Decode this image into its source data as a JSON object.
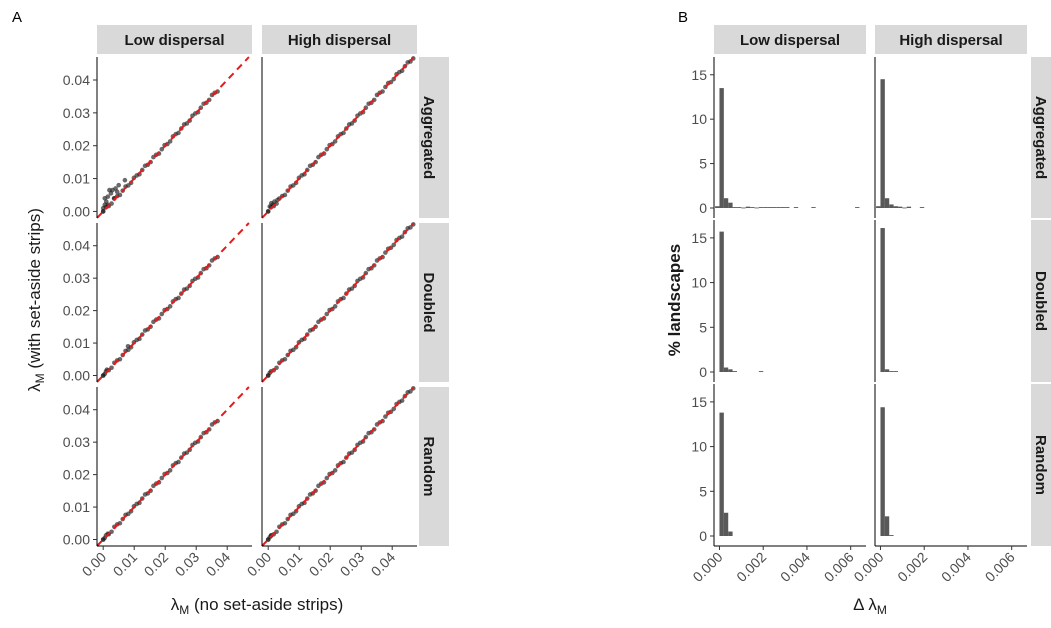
{
  "panel_labels": {
    "a": "A",
    "b": "B"
  },
  "chart_data": [
    {
      "type": "scatter",
      "panel": "A",
      "xlabel": "λM (no set-aside strips)",
      "ylabel": "λM (with set-aside strips)",
      "col_strips": [
        "Low dispersal",
        "High dispersal"
      ],
      "row_strips": [
        "Aggregated",
        "Doubled",
        "Random"
      ],
      "xlim": [
        -0.002,
        0.048
      ],
      "ylim": [
        -0.002,
        0.047
      ],
      "x_ticks": [
        "0.00",
        "0.01",
        "0.02",
        "0.03",
        "0.04"
      ],
      "y_ticks": [
        "0.00",
        "0.01",
        "0.02",
        "0.03",
        "0.04"
      ],
      "reference_line": {
        "type": "y = x",
        "style": "dashed",
        "color": "#e41a1c"
      },
      "point_color": "#1a1a1a",
      "panels": [
        {
          "row": "Aggregated",
          "col": "Low dispersal",
          "x_max": 0.037,
          "cluster": [
            [
              0.0,
              0.0
            ],
            [
              0.0005,
              0.004
            ],
            [
              0.001,
              0.003
            ],
            [
              0.0015,
              0.002
            ],
            [
              0.002,
              0.0065
            ],
            [
              0.003,
              0.0065
            ],
            [
              0.004,
              0.007
            ],
            [
              0.005,
              0.008
            ],
            [
              0.007,
              0.0095
            ],
            [
              0.0015,
              0.0045
            ],
            [
              0.0025,
              0.0055
            ],
            [
              0.0035,
              0.004
            ],
            [
              0.0045,
              0.006
            ],
            [
              0.0005,
              0.002
            ],
            [
              0.0,
              0.001
            ]
          ]
        },
        {
          "row": "Aggregated",
          "col": "High dispersal",
          "x_max": 0.047,
          "cluster": [
            [
              0.0,
              0.0
            ],
            [
              0.0005,
              0.0015
            ],
            [
              0.001,
              0.0025
            ],
            [
              0.0015,
              0.002
            ],
            [
              0.002,
              0.003
            ],
            [
              0.003,
              0.0035
            ]
          ]
        },
        {
          "row": "Doubled",
          "col": "Low dispersal",
          "x_max": 0.037,
          "cluster": [
            [
              0.0,
              0.0
            ],
            [
              0.0005,
              0.0005
            ],
            [
              0.008,
              0.009
            ],
            [
              0.0012,
              0.0018
            ]
          ]
        },
        {
          "row": "Doubled",
          "col": "High dispersal",
          "x_max": 0.047,
          "cluster": [
            [
              0.0,
              0.0
            ],
            [
              0.0005,
              0.0008
            ]
          ]
        },
        {
          "row": "Random",
          "col": "Low dispersal",
          "x_max": 0.037,
          "cluster": [
            [
              0.0,
              0.0
            ],
            [
              0.0005,
              0.0005
            ],
            [
              0.0015,
              0.0018
            ]
          ]
        },
        {
          "row": "Random",
          "col": "High dispersal",
          "x_max": 0.047,
          "cluster": [
            [
              0.0,
              0.0
            ],
            [
              0.0005,
              0.0007
            ],
            [
              0.001,
              0.0012
            ]
          ]
        }
      ]
    },
    {
      "type": "bar",
      "panel": "B",
      "xlabel": "Δ λM",
      "ylabel": "% landscapes",
      "col_strips": [
        "Low dispersal",
        "High dispersal"
      ],
      "row_strips": [
        "Aggregated",
        "Doubled",
        "Random"
      ],
      "xlim": [
        -0.00025,
        0.0067
      ],
      "ylim": [
        0,
        17
      ],
      "x_ticks": [
        "0.000",
        "0.002",
        "0.004",
        "0.006"
      ],
      "y_ticks": [
        "0",
        "5",
        "10",
        "15"
      ],
      "bin_width": 0.0002,
      "bar_color": "#595959",
      "panels": [
        {
          "row": "Aggregated",
          "col": "Low dispersal",
          "bins": [
            [
              -0.0001,
              0.2
            ],
            [
              0.0001,
              13.5
            ],
            [
              0.0003,
              1.1
            ],
            [
              0.0005,
              0.6
            ],
            [
              0.0007,
              0.1
            ],
            [
              0.0009,
              0.1
            ],
            [
              0.0011,
              0.05
            ],
            [
              0.0013,
              0.15
            ],
            [
              0.0015,
              0.1
            ],
            [
              0.0017,
              0.05
            ],
            [
              0.0019,
              0.1
            ],
            [
              0.0021,
              0.1
            ],
            [
              0.0023,
              0.1
            ],
            [
              0.0025,
              0.1
            ],
            [
              0.0027,
              0.1
            ],
            [
              0.0029,
              0.1
            ],
            [
              0.0031,
              0.1
            ],
            [
              0.0035,
              0.1
            ],
            [
              0.0043,
              0.1
            ],
            [
              0.0063,
              0.1
            ]
          ]
        },
        {
          "row": "Aggregated",
          "col": "High dispersal",
          "bins": [
            [
              -0.0001,
              0.2
            ],
            [
              0.0001,
              14.5
            ],
            [
              0.0003,
              1.1
            ],
            [
              0.0005,
              0.4
            ],
            [
              0.0007,
              0.2
            ],
            [
              0.0009,
              0.15
            ],
            [
              0.0011,
              0.05
            ],
            [
              0.0013,
              0.15
            ],
            [
              0.0019,
              0.1
            ]
          ]
        },
        {
          "row": "Doubled",
          "col": "Low dispersal",
          "bins": [
            [
              0.0001,
              15.7
            ],
            [
              0.0003,
              0.5
            ],
            [
              0.0005,
              0.3
            ],
            [
              0.0007,
              0.1
            ],
            [
              0.0019,
              0.1
            ]
          ]
        },
        {
          "row": "Doubled",
          "col": "High dispersal",
          "bins": [
            [
              0.0001,
              16.1
            ],
            [
              0.0003,
              0.3
            ],
            [
              0.0005,
              0.1
            ],
            [
              0.0007,
              0.1
            ]
          ]
        },
        {
          "row": "Random",
          "col": "Low dispersal",
          "bins": [
            [
              0.0001,
              13.8
            ],
            [
              0.0003,
              2.6
            ],
            [
              0.0005,
              0.5
            ]
          ]
        },
        {
          "row": "Random",
          "col": "High dispersal",
          "bins": [
            [
              0.0001,
              14.4
            ],
            [
              0.0003,
              2.2
            ],
            [
              0.0005,
              0.1
            ]
          ]
        }
      ]
    }
  ]
}
